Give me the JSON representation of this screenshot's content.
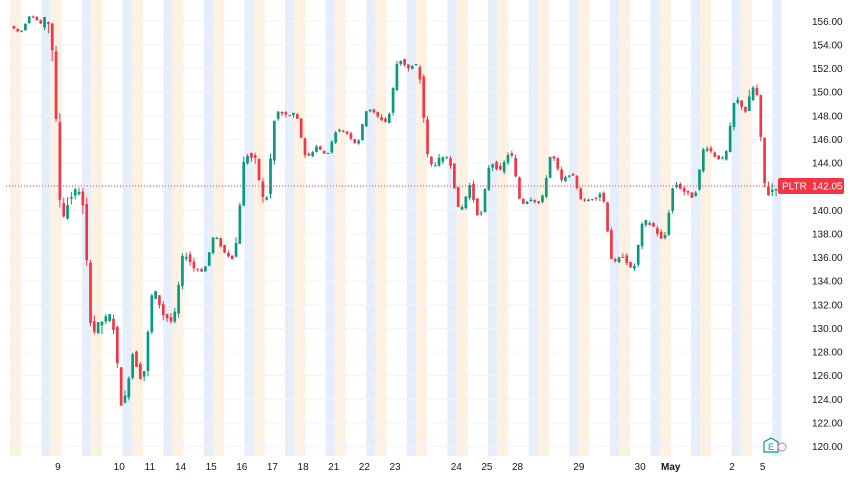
{
  "chart_data": {
    "type": "candlestick",
    "symbol": "PLTR",
    "last_price_label": "142.05",
    "last_price": 142.05,
    "ylim": [
      119.2,
      157.8
    ],
    "y_ticks": [
      "156.00",
      "154.00",
      "152.00",
      "150.00",
      "148.00",
      "146.00",
      "144.00",
      "142.00",
      "140.00",
      "138.00",
      "136.00",
      "134.00",
      "132.00",
      "130.00",
      "128.00",
      "126.00",
      "124.00",
      "122.00",
      "120.00"
    ],
    "y_tick_values": [
      156,
      154,
      152,
      150,
      148,
      146,
      144,
      142,
      140,
      138,
      136,
      134,
      132,
      130,
      128,
      126,
      124,
      122,
      120
    ],
    "x_ticks": [
      "9",
      "10",
      "11",
      "14",
      "15",
      "16",
      "17",
      "18",
      "21",
      "22",
      "23",
      "24",
      "25",
      "28",
      "29",
      "30",
      "May",
      "2",
      "5"
    ],
    "sessions": [
      {
        "label": "",
        "open": 155.6,
        "high": 156.6,
        "low": 155.0,
        "close": 155.8
      },
      {
        "label": "9",
        "open": 155.8,
        "high": 156.0,
        "low": 139.2,
        "close": 141.3
      },
      {
        "label": "",
        "open": 141.3,
        "high": 141.9,
        "low": 129.5,
        "close": 130.6
      },
      {
        "label": "10",
        "open": 130.6,
        "high": 131.2,
        "low": 122.8,
        "close": 127.9
      },
      {
        "label": "11",
        "open": 127.9,
        "high": 133.6,
        "low": 125.3,
        "close": 131.2
      },
      {
        "label": "14",
        "open": 131.2,
        "high": 136.6,
        "low": 130.4,
        "close": 135.1
      },
      {
        "label": "15",
        "open": 135.1,
        "high": 138.0,
        "low": 134.8,
        "close": 136.4
      },
      {
        "label": "16",
        "open": 136.4,
        "high": 144.9,
        "low": 136.0,
        "close": 144.2
      },
      {
        "label": "17",
        "open": 144.2,
        "high": 148.4,
        "low": 140.0,
        "close": 148.0
      },
      {
        "label": "18",
        "open": 148.0,
        "high": 148.2,
        "low": 144.3,
        "close": 145.4
      },
      {
        "label": "21",
        "open": 145.4,
        "high": 146.9,
        "low": 144.6,
        "close": 146.5
      },
      {
        "label": "22",
        "open": 146.5,
        "high": 148.8,
        "low": 145.5,
        "close": 147.9
      },
      {
        "label": "23",
        "open": 147.9,
        "high": 153.0,
        "low": 147.4,
        "close": 152.0
      },
      {
        "label": "",
        "open": 152.0,
        "high": 152.3,
        "low": 143.7,
        "close": 144.2
      },
      {
        "label": "24",
        "open": 144.2,
        "high": 144.6,
        "low": 139.6,
        "close": 142.1
      },
      {
        "label": "25",
        "open": 142.1,
        "high": 144.2,
        "low": 139.0,
        "close": 143.3
      },
      {
        "label": "28",
        "open": 143.3,
        "high": 145.2,
        "low": 140.5,
        "close": 141.0
      },
      {
        "label": "",
        "open": 141.0,
        "high": 145.0,
        "low": 140.5,
        "close": 142.5
      },
      {
        "label": "29",
        "open": 142.5,
        "high": 143.2,
        "low": 140.7,
        "close": 141.0
      },
      {
        "label": "",
        "open": 141.0,
        "high": 141.6,
        "low": 135.3,
        "close": 136.2
      },
      {
        "label": "30",
        "open": 136.2,
        "high": 139.2,
        "low": 134.7,
        "close": 138.6
      },
      {
        "label": "May",
        "open": 138.6,
        "high": 142.4,
        "low": 137.2,
        "close": 141.6
      },
      {
        "label": "",
        "open": 141.6,
        "high": 145.6,
        "low": 141.0,
        "close": 144.6
      },
      {
        "label": "2",
        "open": 144.6,
        "high": 149.6,
        "low": 144.2,
        "close": 148.4
      },
      {
        "label": "5",
        "open": 148.4,
        "high": 151.0,
        "low": 141.2,
        "close": 142.05
      }
    ],
    "colors": {
      "up": "#089981",
      "down": "#f23645",
      "band_blue": "#e6eefb",
      "band_orange": "#fdf1e2",
      "grid": "#f0f3fa",
      "axis_text": "#131722",
      "price_line": "#f23645",
      "label_bg": "#f23645",
      "earnings_badge": "#0a9a83"
    },
    "earnings_badge_text": "E"
  }
}
